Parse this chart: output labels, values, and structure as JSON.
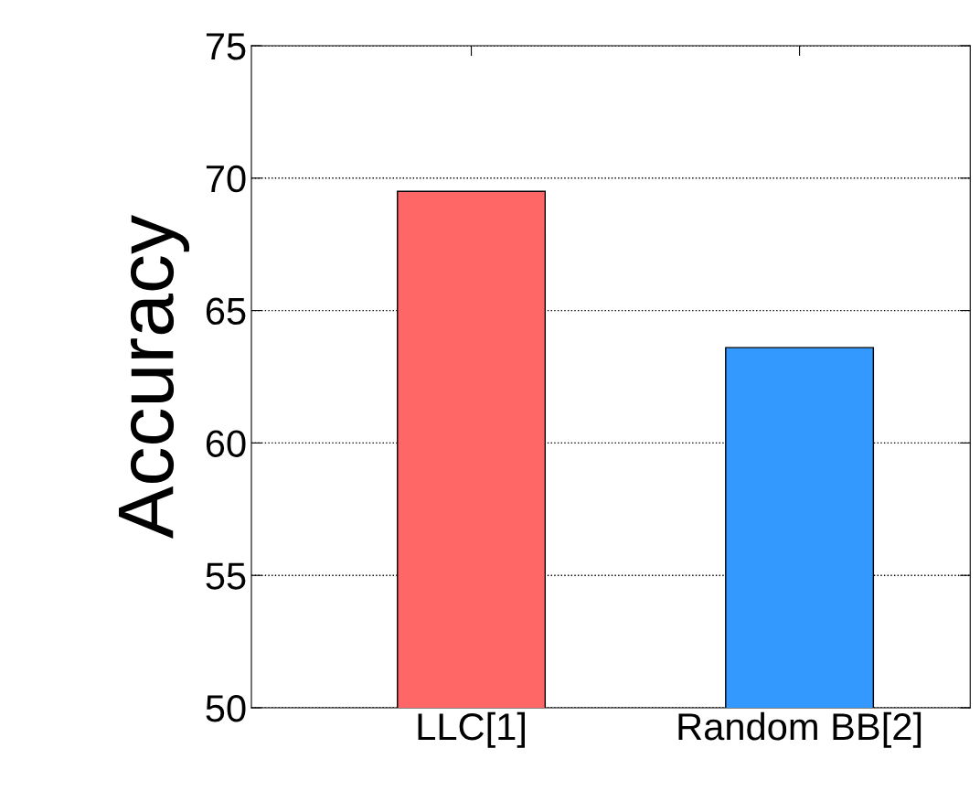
{
  "chart_data": {
    "type": "bar",
    "ylabel": "Accuracy",
    "categories": [
      "LLC[1]",
      "Random BB[2]"
    ],
    "values": [
      69.5,
      63.6
    ],
    "colors": [
      "#ff6666",
      "#3399ff"
    ],
    "ylim": [
      50,
      75
    ],
    "yticks": [
      50,
      55,
      60,
      65,
      70,
      75
    ],
    "grid": "y"
  }
}
